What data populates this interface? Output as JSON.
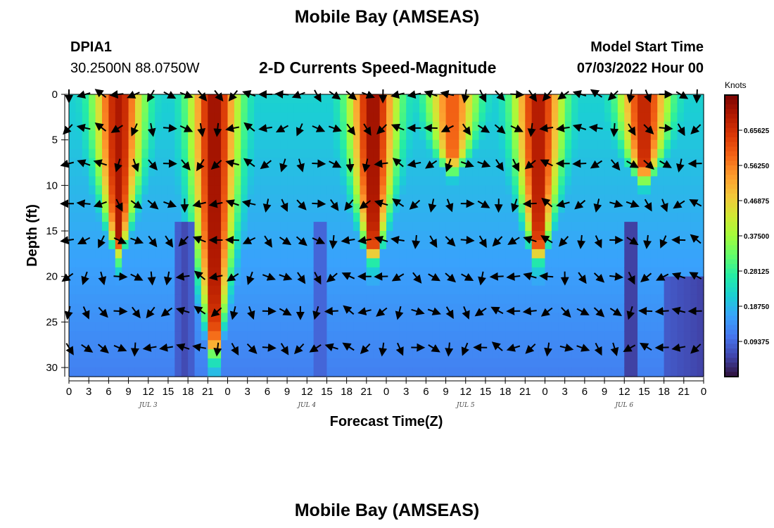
{
  "header": {
    "title": "Mobile Bay (AMSEAS)",
    "station": "DPIA1",
    "coordinates": "30.2500N  88.0750W",
    "subtitle": "2-D Currents Speed-Magnitude",
    "model_start_label": "Model Start Time",
    "model_start_value": "07/03/2022 Hour 00"
  },
  "footer": {
    "repeat_title": "Mobile Bay (AMSEAS)"
  },
  "chart_data": {
    "type": "heatmap",
    "title": "2-D Currents Speed-Magnitude",
    "xlabel": "Forecast Time(Z)",
    "ylabel": "Depth (ft)",
    "x_tick_labels": [
      "0",
      "3",
      "6",
      "9",
      "12",
      "15",
      "18",
      "21",
      "0",
      "3",
      "6",
      "9",
      "12",
      "15",
      "18",
      "21",
      "0",
      "3",
      "6",
      "9",
      "12",
      "15",
      "18",
      "21",
      "0",
      "3",
      "6",
      "9",
      "12",
      "15",
      "18",
      "21",
      "0"
    ],
    "xlim_hours": [
      0,
      96
    ],
    "day_labels": [
      {
        "label": "JUL 3",
        "hour": 12
      },
      {
        "label": "JUL 4",
        "hour": 36
      },
      {
        "label": "JUL 5",
        "hour": 60
      },
      {
        "label": "JUL 6",
        "hour": 84
      }
    ],
    "y_ticks": [
      0,
      5,
      10,
      15,
      20,
      25,
      30
    ],
    "ylim": [
      0,
      31
    ],
    "y_inverted": true,
    "colorbar": {
      "unit": "Knots",
      "tick_labels": [
        "0.65625",
        "0.56250",
        "0.46875",
        "0.37500",
        "0.28125",
        "0.18750",
        "0.09375"
      ],
      "tick_values": [
        0.65625,
        0.5625,
        0.46875,
        0.375,
        0.28125,
        0.1875,
        0.09375
      ],
      "range": [
        0,
        0.75
      ],
      "colors": [
        "#30123b",
        "#4145ab",
        "#4675ed",
        "#39a2fc",
        "#1bcfd4",
        "#24eca6",
        "#61fc6c",
        "#a4fc3b",
        "#d1e834",
        "#f3c63a",
        "#fe9b2d",
        "#f36315",
        "#d93806",
        "#b11901",
        "#7a0403"
      ]
    },
    "speed_peaks_hours": [
      {
        "hour": 7.5,
        "surface_knots": 0.7,
        "bottom_depth_ft": 16
      },
      {
        "hour": 22,
        "surface_knots": 0.72,
        "bottom_depth_ft": 28
      },
      {
        "hour": 46,
        "surface_knots": 0.72,
        "bottom_depth_ft": 17
      },
      {
        "hour": 58,
        "surface_knots": 0.6,
        "bottom_depth_ft": 7
      },
      {
        "hour": 71,
        "surface_knots": 0.7,
        "bottom_depth_ft": 17
      },
      {
        "hour": 87,
        "surface_knots": 0.68,
        "bottom_depth_ft": 8
      }
    ],
    "vector_rows_depth_ft": [
      0,
      3.7,
      7.6,
      12,
      16,
      20,
      23.8,
      27.8
    ],
    "vector_columns_hours": [
      0,
      2.5,
      5,
      7.5,
      10,
      12.5,
      15,
      17.5,
      20,
      22.5,
      25,
      27.5,
      30,
      32.5,
      35,
      37.5,
      40,
      42.5,
      45,
      47.5,
      50,
      52.5,
      55,
      57.5,
      60,
      62.5,
      65,
      67.5,
      70,
      72.5,
      75,
      77.5,
      80,
      82.5,
      85,
      87.5,
      90,
      92.5,
      95
    ]
  }
}
